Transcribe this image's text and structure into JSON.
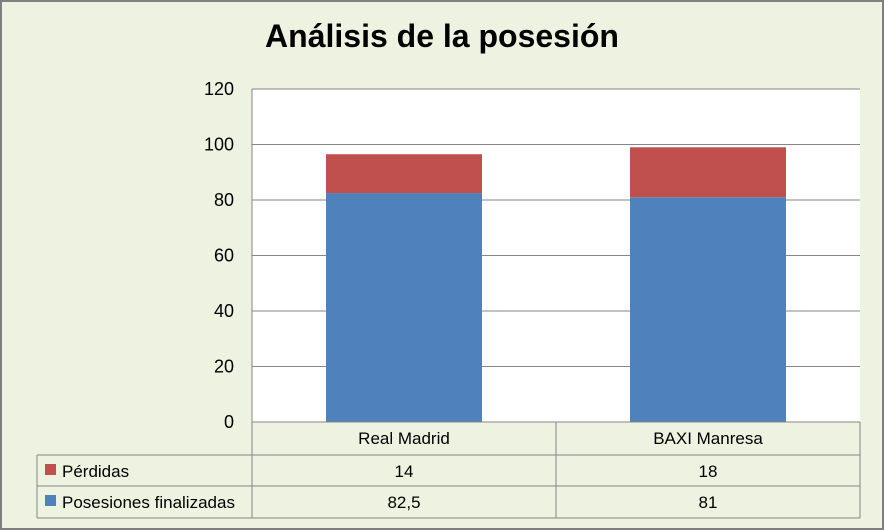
{
  "chart_data": {
    "type": "bar",
    "stacked": true,
    "title": "Análisis de la posesión",
    "categories": [
      "Real Madrid",
      "BAXI Manresa"
    ],
    "series": [
      {
        "name": "Posesiones finalizadas",
        "values": [
          82.5,
          81
        ],
        "value_labels": [
          "82,5",
          "81"
        ],
        "color": "#4f81bd"
      },
      {
        "name": "Pérdidas",
        "values": [
          14,
          18
        ],
        "value_labels": [
          "14",
          "18"
        ],
        "color": "#c0504d"
      }
    ],
    "ylim": [
      0,
      120
    ],
    "yticks": [
      0,
      20,
      40,
      60,
      80,
      100,
      120
    ],
    "grid": true,
    "legend": "data-table"
  }
}
